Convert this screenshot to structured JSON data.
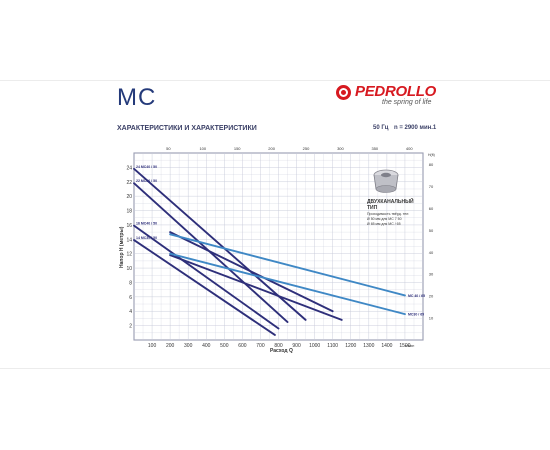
{
  "header": {
    "model": "MC",
    "brand_name": "PEDROLLO",
    "brand_tagline": "the spring of life",
    "subtitle": "ХАРАКТЕРИСТИКИ И ХАРАКТЕРИСТИКИ",
    "frequency": "50 Гц",
    "speed": "n = 2900 мин.1"
  },
  "legend_box": {
    "title": "ДВУХКАНАЛЬНЫЙ ТИП",
    "line1": "Проходимость твёрд. тел:",
    "line2": "Ø 50 мм для МС 7 50",
    "line3": "Ø 65 мм для МС / 65"
  },
  "chart_data": {
    "type": "line",
    "xlabel": "Расход Q",
    "x_unit": "л/мин",
    "ylabel": "Напор H (метры)",
    "x_bottom_ticks": [
      100,
      200,
      300,
      400,
      500,
      600,
      700,
      800,
      900,
      1000,
      1100,
      1200,
      1300,
      1400,
      1500
    ],
    "x_top_ticks": [
      50,
      100,
      150,
      200,
      250,
      300,
      350,
      400
    ],
    "y_left_ticks": [
      2,
      4,
      6,
      8,
      10,
      12,
      14,
      16,
      18,
      20,
      22,
      24
    ],
    "y_right_ticks": [
      10,
      20,
      30,
      40,
      50,
      60,
      70,
      80
    ],
    "right_axis_label": "H(ft)",
    "xlim": [
      0,
      1600
    ],
    "ylim": [
      0,
      26
    ],
    "grid": true,
    "series": [
      {
        "name": "24 MC40 / 50",
        "color": "#2e2f7a",
        "x": [
          0,
          950
        ],
        "y": [
          23.8,
          2.8
        ]
      },
      {
        "name": "22 MC30 / 50",
        "color": "#2e2f7a",
        "x": [
          0,
          850
        ],
        "y": [
          21.8,
          2.5
        ]
      },
      {
        "name": "16 MC40 / 50",
        "color": "#2e2f7a",
        "x": [
          0,
          800
        ],
        "y": [
          15.9,
          1.6
        ]
      },
      {
        "name": "14 MC30 / 50",
        "color": "#2e2f7a",
        "x": [
          0,
          780
        ],
        "y": [
          13.9,
          0.7
        ]
      },
      {
        "name": "MC30 / 65",
        "color": "#2e2f7a",
        "x": [
          200,
          1150
        ],
        "y": [
          11.8,
          2.8
        ]
      },
      {
        "name": "MC40 / 65",
        "color": "#2e2f7a",
        "x": [
          200,
          1100
        ],
        "y": [
          15.0,
          4.0
        ]
      },
      {
        "name": "MC 40 / 65",
        "color": "#3f88c5",
        "x": [
          200,
          1500
        ],
        "y": [
          14.7,
          6.2
        ]
      },
      {
        "name": "MC30 / 65",
        "color": "#3f88c5",
        "x": [
          200,
          1500
        ],
        "y": [
          12.0,
          3.6
        ]
      }
    ]
  },
  "colors": {
    "grid": "#c6c9d8",
    "plot_bg": "#ffffff",
    "dark_line": "#2e2f7a",
    "light_line": "#3f88c5",
    "frame": "#3a3f66"
  }
}
